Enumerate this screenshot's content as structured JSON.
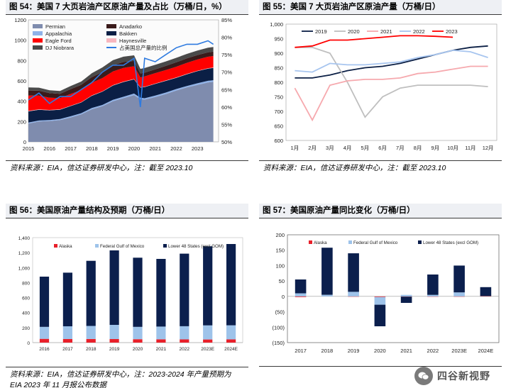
{
  "panels": [
    {
      "title": "图 54：美国 7 大页岩油产区原油产量及占比（万桶/日，%）",
      "source": "资料来源：EIA，信达证券研发中心，注：截至 2023.10"
    },
    {
      "title": "图 55：美国 7 大页岩油产区原油产量（万桶/日）",
      "source": "资料来源：EIA，信达证券研发中心，注：截至 2023.10"
    },
    {
      "title": "图 56：美国原油产量结构及预期（万桶/日）",
      "source": [
        "资料来源：EIA，信达证券研发中心，注：2023-2024 年产量预期为",
        "EIA 2023 年 11 月报公布数据"
      ]
    },
    {
      "title": "图 57：美国原油产量同比变化（万桶/日）",
      "source": ""
    }
  ],
  "watermark": {
    "text": "四谷新视野",
    "icon": "wechat-icon"
  },
  "chart_data": [
    {
      "type": "area",
      "x_ticks": [
        "2015",
        "2016",
        "2017",
        "2018",
        "2019",
        "2020",
        "2021",
        "2022",
        "2023"
      ],
      "ylim": [
        0,
        1200
      ],
      "y_ticks": [
        0,
        200,
        400,
        600,
        800,
        1000,
        1200
      ],
      "y2lim": [
        50,
        85
      ],
      "y2_ticks": [
        "50%",
        "55%",
        "60%",
        "65%",
        "70%",
        "75%",
        "80%",
        "85%"
      ],
      "legend": [
        {
          "name": "Permian",
          "color": "#7f8cae"
        },
        {
          "name": "Anadarko",
          "color": "#3a1b1b"
        },
        {
          "name": "Appalachia",
          "color": "#8fb2e8"
        },
        {
          "name": "Bakken",
          "color": "#0b1f45"
        },
        {
          "name": "Eagle Ford",
          "color": "#ff0000"
        },
        {
          "name": "Haynesville",
          "color": "#f7b7bf"
        },
        {
          "name": "DJ Niobrara",
          "color": "#4a4a4a"
        },
        {
          "name": "占美国总产量的比例",
          "color": "#2f7be0"
        }
      ],
      "stack_order": [
        "Permian",
        "Appalachia",
        "Bakken",
        "Haynesville",
        "Eagle Ford",
        "Anadarko",
        "DJ Niobrara"
      ],
      "years": [
        2015.0,
        2015.5,
        2016.0,
        2016.5,
        2017.0,
        2017.5,
        2018.0,
        2018.5,
        2019.0,
        2019.5,
        2020.0,
        2020.3,
        2020.5,
        2021.0,
        2021.5,
        2022.0,
        2022.5,
        2023.0,
        2023.5,
        2023.75
      ],
      "series": [
        {
          "name": "Permian",
          "values": [
            180,
            200,
            205,
            215,
            240,
            270,
            320,
            350,
            400,
            430,
            460,
            420,
            415,
            440,
            470,
            505,
            535,
            560,
            585,
            590
          ]
        },
        {
          "name": "Appalachia",
          "values": [
            10,
            10,
            10,
            10,
            12,
            12,
            13,
            13,
            14,
            14,
            15,
            14,
            14,
            15,
            15,
            15,
            15,
            16,
            16,
            16
          ]
        },
        {
          "name": "Bakken",
          "values": [
            110,
            105,
            95,
            92,
            100,
            105,
            120,
            130,
            140,
            145,
            140,
            100,
            110,
            115,
            115,
            110,
            115,
            120,
            120,
            122
          ]
        },
        {
          "name": "Haynesville",
          "values": [
            5,
            5,
            4,
            4,
            4,
            4,
            4,
            4,
            4,
            4,
            4,
            4,
            4,
            4,
            4,
            4,
            4,
            4,
            4,
            4
          ]
        },
        {
          "name": "Eagle Ford",
          "values": [
            150,
            135,
            120,
            110,
            115,
            118,
            125,
            130,
            135,
            135,
            125,
            95,
            100,
            102,
            103,
            105,
            108,
            110,
            112,
            112
          ]
        },
        {
          "name": "Anadarko",
          "values": [
            50,
            48,
            45,
            42,
            48,
            52,
            55,
            60,
            60,
            58,
            52,
            40,
            38,
            38,
            40,
            44,
            44,
            44,
            44,
            44
          ]
        },
        {
          "name": "DJ Niobrara",
          "values": [
            30,
            30,
            28,
            28,
            30,
            32,
            38,
            45,
            50,
            52,
            55,
            45,
            45,
            44,
            44,
            44,
            44,
            44,
            45,
            45
          ]
        }
      ],
      "ratio_series": {
        "name": "占美国总产量的比例",
        "values": [
          62,
          64,
          61,
          63,
          63,
          65,
          67,
          70,
          72,
          72,
          74,
          60,
          74,
          73,
          75,
          77,
          78,
          78,
          79,
          78
        ]
      }
    },
    {
      "type": "line",
      "categories": [
        "1月",
        "2月",
        "3月",
        "4月",
        "5月",
        "6月",
        "7月",
        "8月",
        "9月",
        "10月",
        "11月",
        "12月"
      ],
      "ylim": [
        600,
        1000
      ],
      "y_ticks": [
        "600",
        "650",
        "700",
        "750",
        "800",
        "850",
        "900",
        "950",
        "1,000"
      ],
      "series": [
        {
          "name": "2019",
          "color": "#0b1f45",
          "dashed": false,
          "values": [
            815,
            815,
            825,
            840,
            850,
            855,
            865,
            880,
            895,
            910,
            920,
            925
          ]
        },
        {
          "name": "2020",
          "color": "#bfbfbf",
          "dashed": false,
          "values": [
            920,
            920,
            900,
            800,
            680,
            750,
            780,
            790,
            790,
            790,
            790,
            785
          ]
        },
        {
          "name": "2021",
          "color": "#f6a9ae",
          "dashed": false,
          "values": [
            780,
            670,
            790,
            805,
            810,
            810,
            815,
            830,
            835,
            845,
            855,
            855
          ]
        },
        {
          "name": "2022",
          "color": "#a7c5ef",
          "dashed": false,
          "values": [
            840,
            835,
            865,
            860,
            860,
            865,
            870,
            885,
            895,
            910,
            905,
            885
          ]
        },
        {
          "name": "2023",
          "color": "#ff0000",
          "dashed": false,
          "values": [
            920,
            925,
            945,
            945,
            950,
            955,
            960,
            960,
            958,
            955,
            null,
            null
          ]
        }
      ]
    },
    {
      "type": "bar",
      "categories": [
        "2016",
        "2017",
        "2018",
        "2019",
        "2020",
        "2021",
        "2022",
        "2023E",
        "2024E"
      ],
      "ylim": [
        0,
        1400
      ],
      "y_ticks": [
        "0",
        "200",
        "400",
        "600",
        "800",
        "1,000",
        "1,200",
        "1,400"
      ],
      "series": [
        {
          "name": "Alaska",
          "color": "#e8202a",
          "values": [
            50,
            48,
            48,
            47,
            45,
            44,
            43,
            42,
            43
          ]
        },
        {
          "name": "Federal Gulf of Mexico",
          "color": "#9ec3ea",
          "values": [
            160,
            170,
            175,
            190,
            165,
            170,
            175,
            188,
            188
          ]
        },
        {
          "name": "Lower 48 States (excl GOM)",
          "color": "#0b1f4d",
          "values": [
            670,
            715,
            868,
            993,
            922,
            902,
            968,
            1055,
            1084
          ]
        }
      ]
    },
    {
      "type": "bar",
      "categories": [
        "2017",
        "2018",
        "2019",
        "2020",
        "2021",
        "2022",
        "2023E",
        "2024E"
      ],
      "ylim": [
        -150,
        200
      ],
      "y_ticks": [
        "(150)",
        "(100)",
        "(50)",
        "0",
        "50",
        "100",
        "150",
        "200"
      ],
      "series": [
        {
          "name": "Alaska",
          "color": "#e8202a",
          "values": [
            -2,
            0,
            -1,
            -2,
            -1,
            -1,
            -1,
            1
          ]
        },
        {
          "name": "Federal Gulf of Mexico",
          "color": "#9ec3ea",
          "values": [
            10,
            5,
            15,
            -25,
            5,
            5,
            13,
            0
          ]
        },
        {
          "name": "Lower 48 States (excl GOM)",
          "color": "#0b1f4d",
          "values": [
            45,
            153,
            125,
            -70,
            -20,
            66,
            87,
            29
          ]
        }
      ]
    }
  ]
}
